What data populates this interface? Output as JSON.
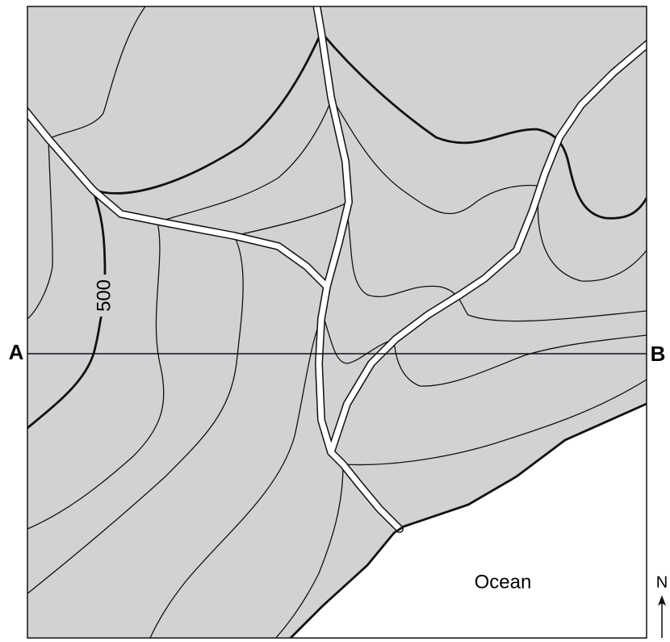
{
  "labels": {
    "section_start": "A",
    "section_end": "B",
    "contour": "500",
    "ocean": "Ocean",
    "north": "N"
  }
}
